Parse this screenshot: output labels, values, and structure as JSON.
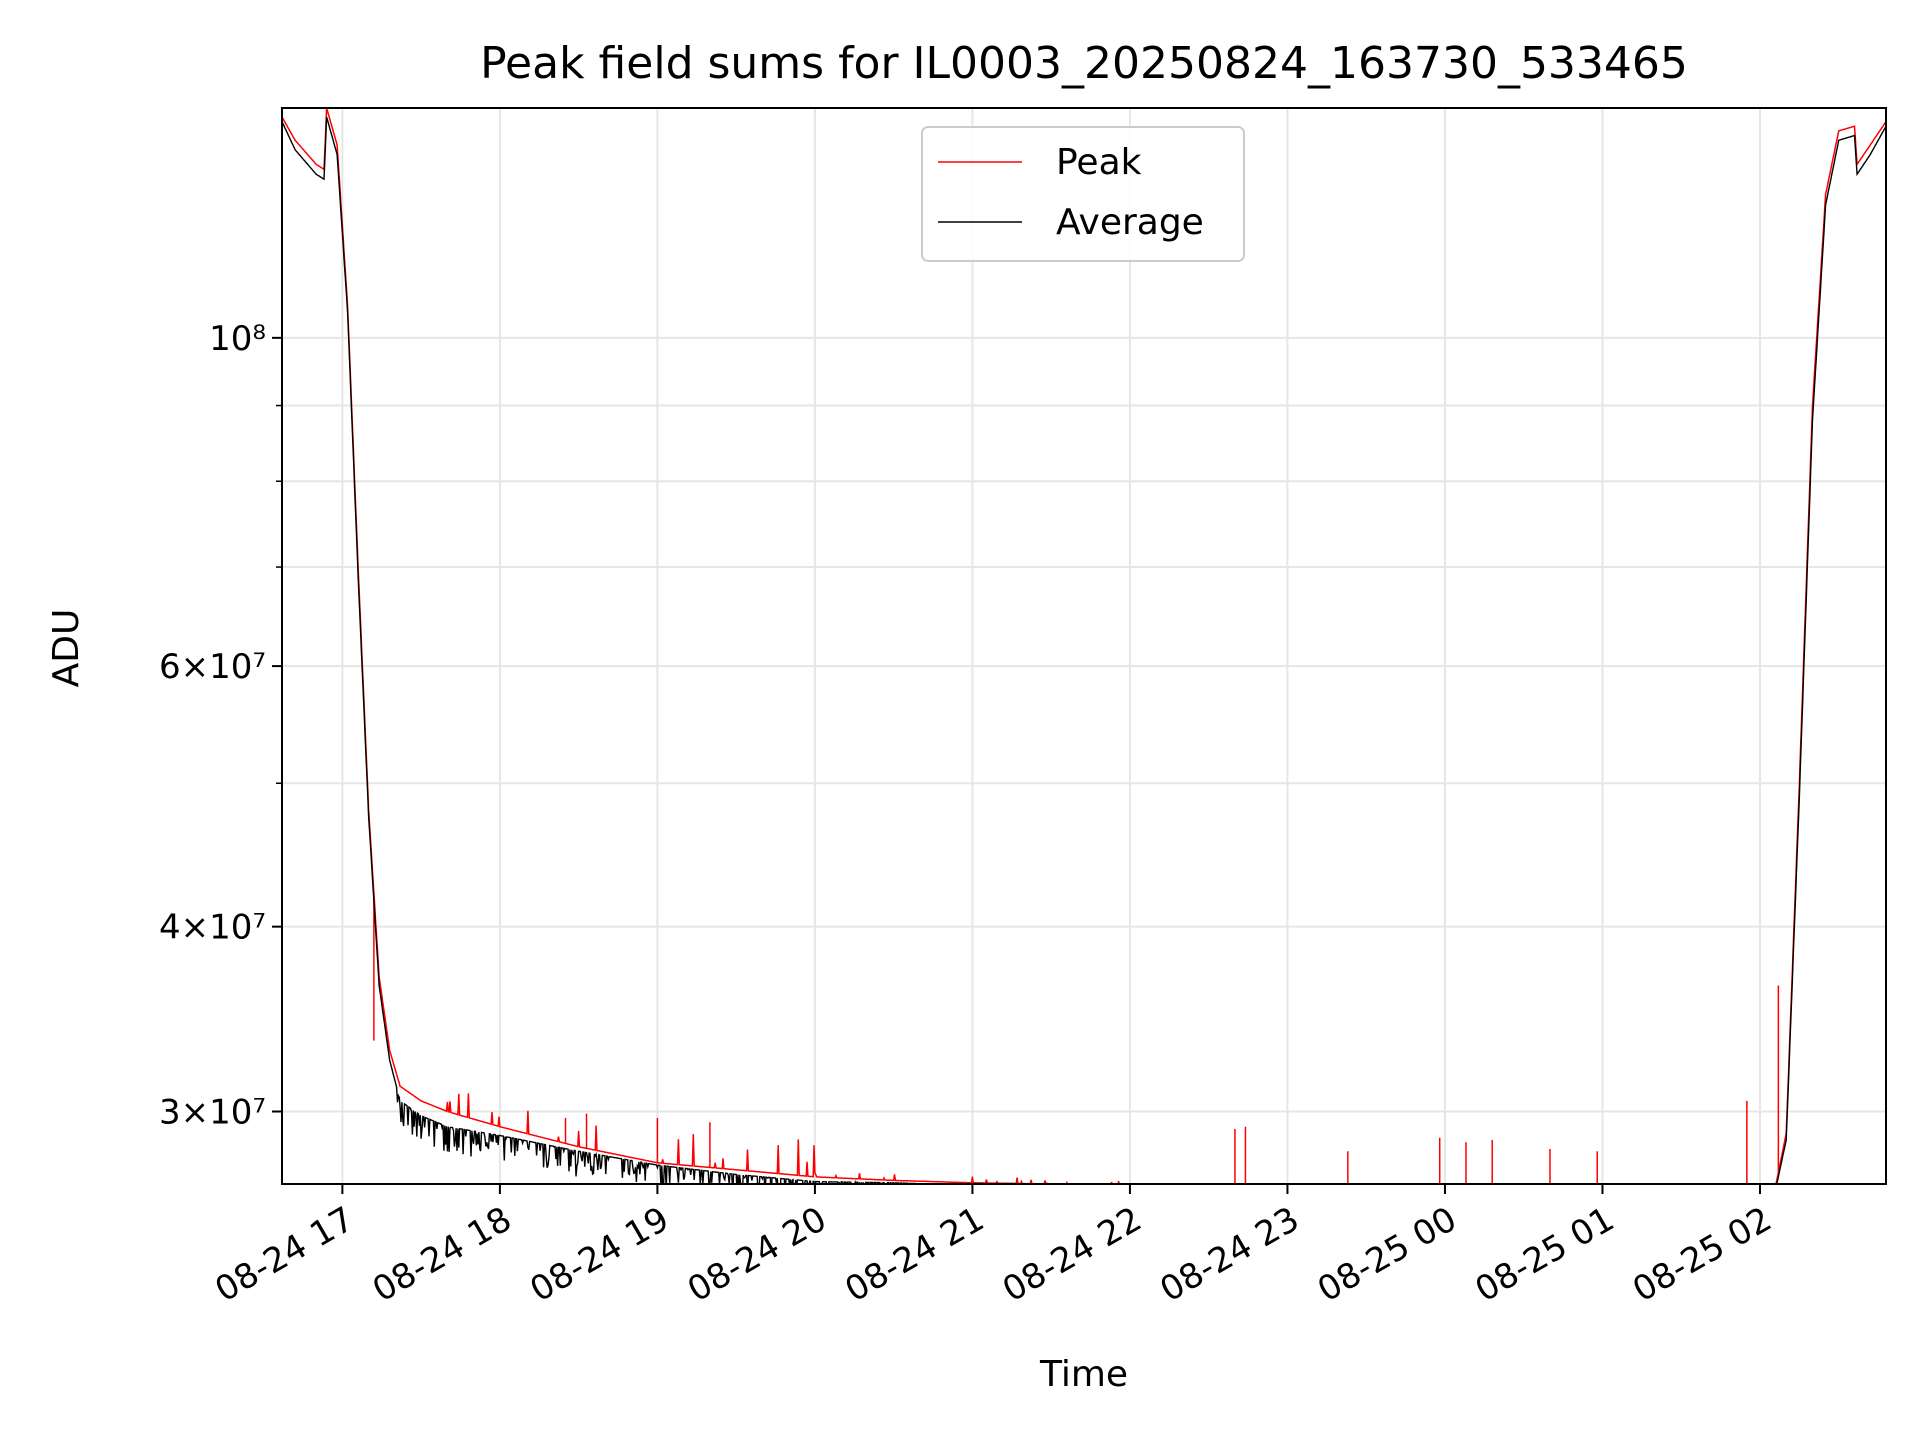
{
  "chart_data": {
    "type": "line",
    "title": "Peak field sums for IL0003_20250824_163730_533465",
    "xlabel": "Time",
    "ylabel": "ADU",
    "yscale": "log",
    "grid": true,
    "legend_position": "top-center",
    "xlim": [
      "2025-08-24 16:37",
      "2025-08-25 02:48"
    ],
    "ylim": [
      26800000,
      143000000
    ],
    "x_ticks": [
      "08-24 17",
      "08-24 18",
      "08-24 19",
      "08-24 20",
      "08-24 21",
      "08-24 22",
      "08-24 23",
      "08-25 00",
      "08-25 01",
      "08-25 02"
    ],
    "y_ticks": [
      {
        "value": 30000000,
        "label": "3×10⁷"
      },
      {
        "value": 40000000,
        "label": "4×10⁷"
      },
      {
        "value": 60000000,
        "label": "6×10⁷"
      },
      {
        "value": 100000000,
        "label": "10⁸"
      }
    ],
    "y_minor_ticks": [
      50000000,
      70000000,
      80000000,
      90000000
    ],
    "series": [
      {
        "name": "Peak",
        "color": "#ff0000",
        "x": [
          "2025-08-24 16:37",
          "2025-08-24 16:42",
          "2025-08-24 16:50",
          "2025-08-24 16:53",
          "2025-08-24 16:54",
          "2025-08-24 16:58",
          "2025-08-24 17:02",
          "2025-08-24 17:06",
          "2025-08-24 17:10",
          "2025-08-24 17:14",
          "2025-08-24 17:18",
          "2025-08-24 17:22",
          "2025-08-24 17:30",
          "2025-08-24 17:40",
          "2025-08-24 18:00",
          "2025-08-24 18:30",
          "2025-08-24 19:00",
          "2025-08-24 19:30",
          "2025-08-24 20:00",
          "2025-08-24 20:30",
          "2025-08-24 21:00",
          "2025-08-24 21:30",
          "2025-08-24 22:00",
          "2025-08-24 22:30",
          "2025-08-24 23:00",
          "2025-08-24 23:30",
          "2025-08-25 00:00",
          "2025-08-25 00:30",
          "2025-08-25 01:00",
          "2025-08-25 01:30",
          "2025-08-25 01:50",
          "2025-08-25 02:00",
          "2025-08-25 02:05",
          "2025-08-25 02:10",
          "2025-08-25 02:15",
          "2025-08-25 02:20",
          "2025-08-25 02:25",
          "2025-08-25 02:30",
          "2025-08-25 02:36",
          "2025-08-25 02:37",
          "2025-08-25 02:42",
          "2025-08-25 02:48"
        ],
        "y": [
          141000000,
          136000000,
          131000000,
          130000000,
          143000000,
          135000000,
          105000000,
          70000000,
          48000000,
          37000000,
          33000000,
          31200000,
          30500000,
          30000000,
          29300000,
          28400000,
          27700000,
          27400000,
          27100000,
          26950000,
          26850000,
          26800000,
          26700000,
          26600000,
          26250000,
          26050000,
          26000000,
          25950000,
          25850000,
          25850000,
          25800000,
          25900000,
          26200000,
          29000000,
          50000000,
          90000000,
          125000000,
          138000000,
          139000000,
          131000000,
          135000000,
          140000000
        ],
        "spikes": [
          {
            "x": "2025-08-24 17:12",
            "y": 33500000
          },
          {
            "x": "2025-08-24 18:25",
            "y": 29700000
          },
          {
            "x": "2025-08-24 18:33",
            "y": 29900000
          },
          {
            "x": "2025-08-24 19:00",
            "y": 29700000
          },
          {
            "x": "2025-08-24 19:20",
            "y": 29500000
          },
          {
            "x": "2025-08-24 22:40",
            "y": 29200000
          },
          {
            "x": "2025-08-24 22:44",
            "y": 29300000
          },
          {
            "x": "2025-08-24 23:23",
            "y": 28200000
          },
          {
            "x": "2025-08-24 23:58",
            "y": 28800000
          },
          {
            "x": "2025-08-25 00:08",
            "y": 28600000
          },
          {
            "x": "2025-08-25 00:18",
            "y": 28700000
          },
          {
            "x": "2025-08-25 00:40",
            "y": 28300000
          },
          {
            "x": "2025-08-25 00:58",
            "y": 28200000
          },
          {
            "x": "2025-08-25 01:55",
            "y": 30500000
          },
          {
            "x": "2025-08-25 02:07",
            "y": 36500000
          }
        ]
      },
      {
        "name": "Average",
        "color": "#000000",
        "x": [
          "2025-08-24 16:37",
          "2025-08-24 16:42",
          "2025-08-24 16:50",
          "2025-08-24 16:53",
          "2025-08-24 16:54",
          "2025-08-24 16:58",
          "2025-08-24 17:02",
          "2025-08-24 17:06",
          "2025-08-24 17:10",
          "2025-08-24 17:14",
          "2025-08-24 17:18",
          "2025-08-24 17:22",
          "2025-08-24 17:30",
          "2025-08-24 17:40",
          "2025-08-24 18:00",
          "2025-08-24 18:30",
          "2025-08-24 19:00",
          "2025-08-24 19:30",
          "2025-08-24 20:00",
          "2025-08-24 20:30",
          "2025-08-24 21:00",
          "2025-08-24 21:30",
          "2025-08-24 22:00",
          "2025-08-24 22:30",
          "2025-08-24 23:00",
          "2025-08-24 23:30",
          "2025-08-25 00:00",
          "2025-08-25 00:30",
          "2025-08-25 01:00",
          "2025-08-25 01:30",
          "2025-08-25 01:50",
          "2025-08-25 02:00",
          "2025-08-25 02:05",
          "2025-08-25 02:10",
          "2025-08-25 02:15",
          "2025-08-25 02:20",
          "2025-08-25 02:25",
          "2025-08-25 02:30",
          "2025-08-25 02:36",
          "2025-08-25 02:37",
          "2025-08-25 02:42",
          "2025-08-25 02:48"
        ],
        "y": [
          140000000,
          134000000,
          129000000,
          128000000,
          141000000,
          133000000,
          104000000,
          69000000,
          47500000,
          36500000,
          32500000,
          30500000,
          29800000,
          29300000,
          28900000,
          28200000,
          27600000,
          27200000,
          26900000,
          26850000,
          26750000,
          26700000,
          26650000,
          26550000,
          26200000,
          26000000,
          25950000,
          25900000,
          25800000,
          25800000,
          25750000,
          25850000,
          26100000,
          28700000,
          49000000,
          88000000,
          123000000,
          136000000,
          137000000,
          129000000,
          133000000,
          139000000
        ]
      }
    ]
  }
}
